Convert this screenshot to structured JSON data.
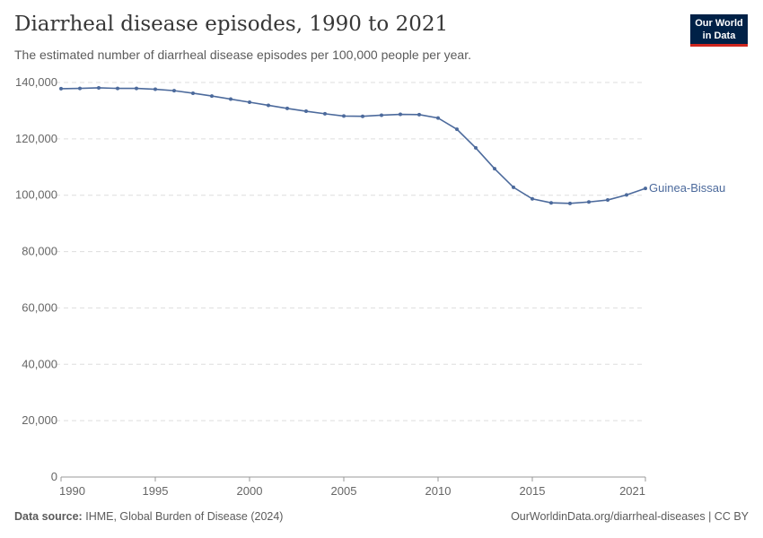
{
  "header": {
    "title": "Diarrheal disease episodes, 1990 to 2021",
    "subtitle": "The estimated number of diarrheal disease episodes per 100,000 people per year.",
    "logo_line1": "Our World",
    "logo_line2": "in Data"
  },
  "footer": {
    "source_label": "Data source:",
    "source": "IHME, Global Burden of Disease (2024)",
    "url": "OurWorldinData.org/diarrheal-diseases | CC BY"
  },
  "chart_data": {
    "type": "line",
    "title": "Diarrheal disease episodes, 1990 to 2021",
    "xlim": [
      1990,
      2021
    ],
    "ylim": [
      0,
      140000
    ],
    "grid": "horizontal dashed",
    "x_ticks": [
      1990,
      1995,
      2000,
      2005,
      2010,
      2015,
      2021
    ],
    "y_ticks": [
      0,
      20000,
      40000,
      60000,
      80000,
      100000,
      120000,
      140000
    ],
    "y_tick_labels": [
      "0",
      "20,000",
      "40,000",
      "60,000",
      "80,000",
      "100,000",
      "120,000",
      "140,000"
    ],
    "legend": "inline-end",
    "series": [
      {
        "name": "Guinea-Bissau",
        "color": "#4c6a9c",
        "x": [
          1990,
          1991,
          1992,
          1993,
          1994,
          1995,
          1996,
          1997,
          1998,
          1999,
          2000,
          2001,
          2002,
          2003,
          2004,
          2005,
          2006,
          2007,
          2008,
          2009,
          2010,
          2011,
          2012,
          2013,
          2014,
          2015,
          2016,
          2017,
          2018,
          2019,
          2020,
          2021
        ],
        "values": [
          137800,
          137900,
          138100,
          137900,
          137900,
          137600,
          137100,
          136200,
          135200,
          134100,
          133000,
          131900,
          130800,
          129800,
          128900,
          128100,
          128000,
          128400,
          128700,
          128600,
          127400,
          123400,
          116800,
          109400,
          102800,
          98700,
          97300,
          97100,
          97600,
          98300,
          100100,
          102400
        ]
      }
    ]
  }
}
